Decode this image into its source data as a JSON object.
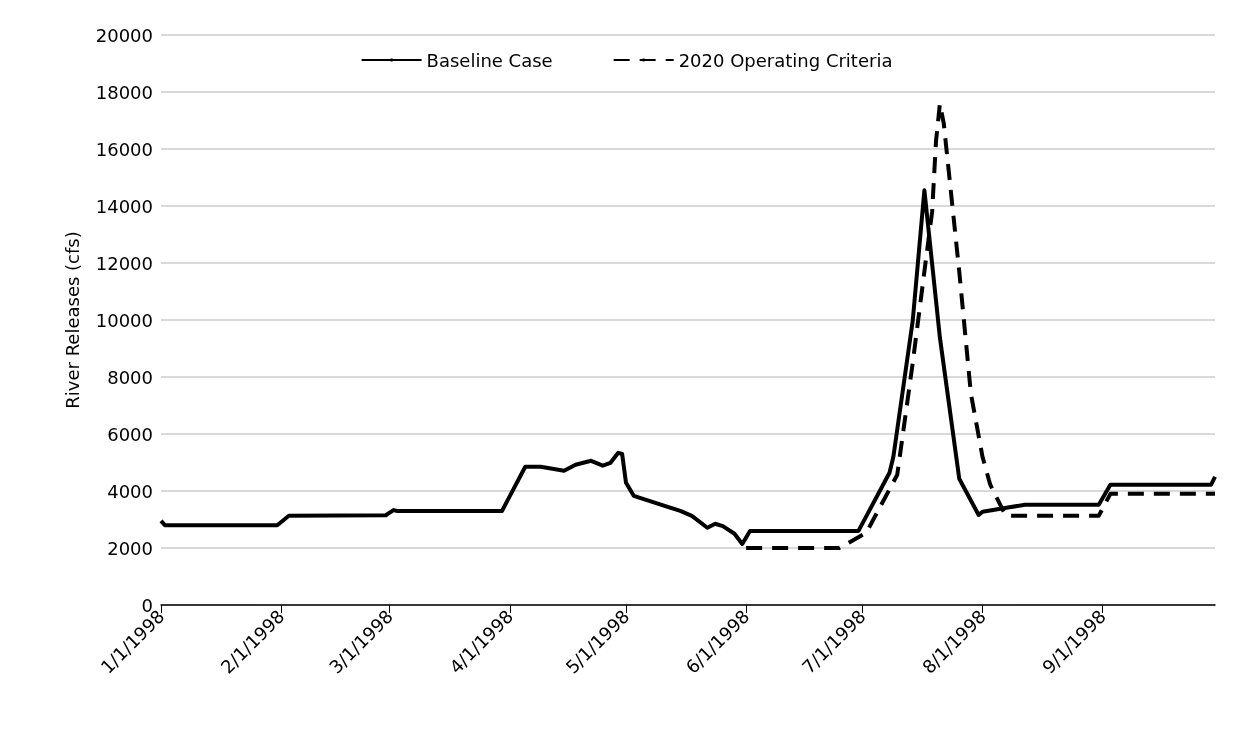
{
  "chart_data": {
    "type": "line",
    "ylabel": "River Releases (cfs)",
    "xlim": [
      "1998-01-01",
      "1998-09-30"
    ],
    "xticks": [
      {
        "value": "1998-01-01",
        "label": "1/1/1998"
      },
      {
        "value": "1998-02-01",
        "label": "2/1/1998"
      },
      {
        "value": "1998-03-01",
        "label": "3/1/1998"
      },
      {
        "value": "1998-04-01",
        "label": "4/1/1998"
      },
      {
        "value": "1998-05-01",
        "label": "5/1/1998"
      },
      {
        "value": "1998-06-01",
        "label": "6/1/1998"
      },
      {
        "value": "1998-07-01",
        "label": "7/1/1998"
      },
      {
        "value": "1998-08-01",
        "label": "8/1/1998"
      },
      {
        "value": "1998-09-01",
        "label": "9/1/1998"
      }
    ],
    "ylim": [
      0,
      20000
    ],
    "yticks": [
      0,
      2000,
      4000,
      6000,
      8000,
      10000,
      12000,
      14000,
      16000,
      18000,
      20000
    ],
    "grid": "y",
    "legend": "top",
    "marker": "none",
    "series": [
      {
        "name": "Baseline Case",
        "color": "#000000",
        "line_style": "solid",
        "x": [
          "1998-01-01",
          "1998-01-02",
          "1998-01-31",
          "1998-02-03",
          "1998-02-28",
          "1998-03-02",
          "1998-03-03",
          "1998-03-30",
          "1998-04-05",
          "1998-04-09",
          "1998-04-15",
          "1998-04-18",
          "1998-04-22",
          "1998-04-25",
          "1998-04-27",
          "1998-04-29",
          "1998-04-30",
          "1998-05-01",
          "1998-05-03",
          "1998-05-15",
          "1998-05-18",
          "1998-05-22",
          "1998-05-24",
          "1998-05-26",
          "1998-05-29",
          "1998-05-31",
          "1998-06-02",
          "1998-06-30",
          "1998-07-08",
          "1998-07-09",
          "1998-07-14",
          "1998-07-17",
          "1998-07-21",
          "1998-07-26",
          "1998-07-31",
          "1998-08-01",
          "1998-08-12",
          "1998-08-31",
          "1998-09-03",
          "1998-09-29",
          "1998-09-30"
        ],
        "values": [
          2950,
          2800,
          2800,
          3130,
          3150,
          3330,
          3300,
          3300,
          4850,
          4850,
          4710,
          4920,
          5060,
          4890,
          4990,
          5340,
          5300,
          4290,
          3830,
          3300,
          3130,
          2710,
          2850,
          2770,
          2500,
          2140,
          2600,
          2600,
          4640,
          5200,
          9980,
          14550,
          9390,
          4430,
          3160,
          3270,
          3520,
          3520,
          4220,
          4220,
          4500
        ]
      },
      {
        "name": "2020 Operating Criteria",
        "color": "#000000",
        "line_style": "dashed",
        "x": [
          "1998-06-01",
          "1998-06-25",
          "1998-07-02",
          "1998-07-10",
          "1998-07-14",
          "1998-07-17",
          "1998-07-19",
          "1998-07-20",
          "1998-07-21",
          "1998-07-22",
          "1998-07-26",
          "1998-07-29",
          "1998-08-01",
          "1998-08-03",
          "1998-08-07",
          "1998-08-31",
          "1998-09-03",
          "1998-09-30"
        ],
        "values": [
          2000,
          2000,
          2530,
          4570,
          8500,
          11700,
          13800,
          16270,
          17580,
          16900,
          11700,
          7420,
          5200,
          4220,
          3130,
          3130,
          3900,
          3900
        ]
      }
    ]
  }
}
